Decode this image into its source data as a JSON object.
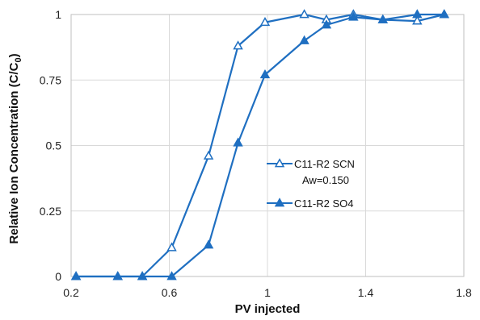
{
  "chart_data": {
    "type": "line",
    "xlabel": "PV injected",
    "ylabel_main": "Relative Ion Concentration (C/C",
    "ylabel_sub": "0",
    "ylabel_close": ")",
    "xlim": [
      0.2,
      1.8
    ],
    "ylim": [
      0,
      1
    ],
    "xticks": [
      0.2,
      0.6,
      1,
      1.4,
      1.8
    ],
    "xtick_labels": [
      "0.2",
      "0.6",
      "1",
      "1.4",
      "1.8"
    ],
    "yticks": [
      0,
      0.25,
      0.5,
      0.75,
      1
    ],
    "ytick_labels": [
      "0",
      "0.25",
      "0.5",
      "0.75",
      "1"
    ],
    "grid": true,
    "line_color": "#1f6fc1",
    "grid_color": "#d9d9d9",
    "legend_position": "center-right",
    "series": [
      {
        "name": "C11-R2  SCN",
        "name_line2": "Aw=0.150",
        "marker": "open-triangle",
        "x": [
          0.22,
          0.39,
          0.49,
          0.61,
          0.76,
          0.88,
          0.99,
          1.15,
          1.24,
          1.35,
          1.47,
          1.61,
          1.72
        ],
        "y": [
          0,
          0,
          0,
          0.11,
          0.46,
          0.88,
          0.97,
          1.0,
          0.98,
          1.0,
          0.98,
          0.975,
          1.0
        ]
      },
      {
        "name": "C11-R2  SO4",
        "marker": "filled-triangle",
        "x": [
          0.22,
          0.39,
          0.49,
          0.61,
          0.76,
          0.88,
          0.99,
          1.15,
          1.24,
          1.35,
          1.47,
          1.61,
          1.72
        ],
        "y": [
          0,
          0,
          0,
          0,
          0.12,
          0.51,
          0.77,
          0.9,
          0.96,
          0.99,
          0.98,
          1.0,
          1.0
        ]
      }
    ]
  }
}
